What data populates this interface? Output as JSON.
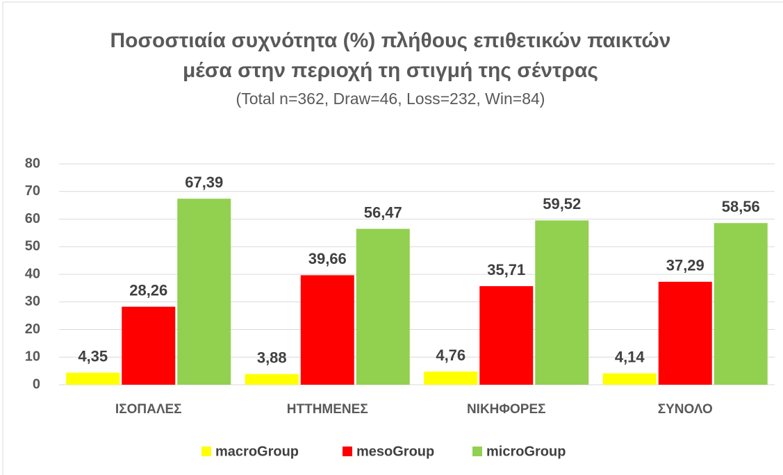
{
  "chart_data": {
    "type": "bar",
    "title": [
      "Ποσοστιαία συχνότητα (%) πλήθους επιθετικών παικτών",
      "μέσα στην περιοχή τη στιγμή της σέντρας"
    ],
    "subtitle": "(Total n=362, Draw=46, Loss=232, Win=84)",
    "categories": [
      "ΙΣΟΠΑΛΕΣ",
      "ΗΤΤΗΜΕΝΕΣ",
      "ΝΙΚΗΦΟΡΕΣ",
      "ΣΥΝΟΛΟ"
    ],
    "series": [
      {
        "name": "macroGroup",
        "color": "#ffff00",
        "values": [
          4.35,
          3.88,
          4.76,
          4.14
        ],
        "value_labels": [
          "4,35",
          "3,88",
          "4,76",
          "4,14"
        ]
      },
      {
        "name": "mesoGroup",
        "color": "#ff0000",
        "values": [
          28.26,
          39.66,
          35.71,
          37.29
        ],
        "value_labels": [
          "28,26",
          "39,66",
          "35,71",
          "37,29"
        ]
      },
      {
        "name": "microGroup",
        "color": "#92d050",
        "values": [
          67.39,
          56.47,
          59.52,
          58.56
        ],
        "value_labels": [
          "67,39",
          "56,47",
          "59,52",
          "58,56"
        ]
      }
    ],
    "ylim": [
      0,
      80
    ],
    "yticks": [
      0,
      10,
      20,
      30,
      40,
      50,
      60,
      70,
      80
    ],
    "grid": true,
    "legend": "bottom"
  }
}
